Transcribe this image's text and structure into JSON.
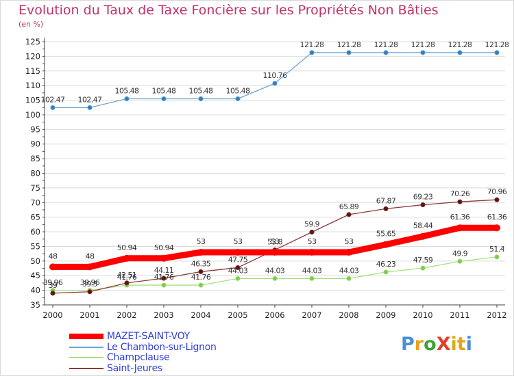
{
  "title": "Evolution du Taux de Taxe Foncière sur les Propriétés Non Bâties",
  "unit_label": "(en %)",
  "brand": {
    "text": "ProXiti",
    "letter_colors": [
      "#4a90d9",
      "#e8a21a",
      "#3ea335",
      "#e2402f",
      "#d6b012",
      "#e8a21a",
      "#4a90d9"
    ]
  },
  "colors": {
    "grid": "#dcdcdc",
    "axis": "#404040",
    "tick_text": "#222222",
    "value_text": "#333333",
    "title": "#c2306a",
    "legend_text": "#2f3fd6"
  },
  "chart_data": {
    "type": "line",
    "x": [
      "2000",
      "2001",
      "2002",
      "2003",
      "2004",
      "2005",
      "2006",
      "2007",
      "2008",
      "2009",
      "2010",
      "2011",
      "2012"
    ],
    "ylim": [
      35,
      125
    ],
    "yticks": [
      35,
      40,
      45,
      50,
      55,
      60,
      65,
      70,
      75,
      80,
      85,
      90,
      95,
      100,
      105,
      110,
      115,
      120,
      125
    ],
    "grid": "horizontal",
    "series": [
      {
        "name": "MAZET-SAINT-VOY",
        "color": "#ff0000",
        "marker_color": "#ff0000",
        "width": 9,
        "marker_r": 5,
        "values": [
          48,
          48,
          50.94,
          50.94,
          53,
          53,
          53,
          53,
          53,
          55.65,
          58.44,
          61.36,
          61.36
        ],
        "labels": [
          "48",
          "48",
          "50.94",
          "50.94",
          "53",
          "53",
          "53",
          "53",
          "53",
          "55.65",
          "58.44",
          "61.36",
          "61.36"
        ]
      },
      {
        "name": "Le Chambon-sur-Lignon",
        "color": "#6fa6d6",
        "marker_color": "#2f7fc1",
        "width": 1.3,
        "marker_r": 3.2,
        "values": [
          102.47,
          102.47,
          105.48,
          105.48,
          105.48,
          105.48,
          110.76,
          121.28,
          121.28,
          121.28,
          121.28,
          121.28,
          121.28
        ],
        "labels": [
          "102.47",
          "102.47",
          "105.48",
          "105.48",
          "105.48",
          "105.48",
          "110.76",
          "121.28",
          "121.28",
          "121.28",
          "121.28",
          "121.28",
          "121.28"
        ]
      },
      {
        "name": "Champclause",
        "color": "#a8e07a",
        "marker_color": "#7ccc4c",
        "width": 1.3,
        "marker_r": 3.2,
        "values": [
          39.96,
          39.96,
          41.76,
          41.76,
          41.76,
          44.03,
          44.03,
          44.03,
          44.03,
          46.23,
          47.59,
          49.9,
          51.4
        ],
        "labels": [
          "39.96",
          "39.96",
          "41.76",
          "41.76",
          "41.76",
          "44.03",
          "44.03",
          "44.03",
          "44.03",
          "46.23",
          "47.59",
          "49.9",
          "51.4"
        ]
      },
      {
        "name": "Saint-Jeures",
        "color": "#8a3a3a",
        "marker_color": "#5a1414",
        "width": 1.3,
        "marker_r": 3.2,
        "values": [
          39,
          39.5,
          42.51,
          44.11,
          46.35,
          47.75,
          53.8,
          59.9,
          65.89,
          67.87,
          69.23,
          70.26,
          70.96
        ],
        "labels": [
          "39",
          "39.5",
          "42.51",
          "44.11",
          "46.35",
          "47.75",
          "53.8",
          "59.9",
          "65.89",
          "67.87",
          "69.23",
          "70.26",
          "70.96"
        ]
      }
    ]
  }
}
